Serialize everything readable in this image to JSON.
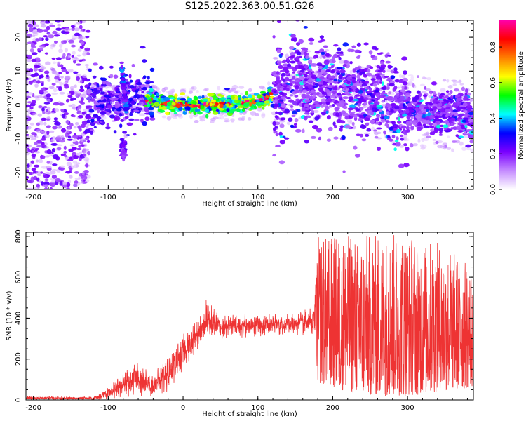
{
  "figure_title": "S125.2022.363.00.51.G26",
  "chart_data": [
    {
      "type": "heatmap",
      "title": "",
      "xlabel": "Height of straight line (km)",
      "ylabel": "Frequency (Hz)",
      "xlim": [
        -210,
        388
      ],
      "ylim": [
        -25,
        25
      ],
      "x_ticks": [
        -200,
        -100,
        0,
        100,
        200,
        300
      ],
      "y_ticks": [
        -20,
        -10,
        0,
        10,
        20
      ],
      "colorbar": {
        "label": "Normalized spectral amplitude",
        "range": [
          0,
          0.95
        ],
        "ticks": [
          0.0,
          0.2,
          0.4,
          0.6,
          0.8
        ],
        "colors": [
          "#ffffff",
          "#c58cff",
          "#7a00ff",
          "#0000ff",
          "#00ffff",
          "#00ff00",
          "#ffff00",
          "#ff7f00",
          "#ff0000",
          "#ff00aa"
        ]
      },
      "ridge_center_hz": [
        {
          "x": -130,
          "y": 0
        },
        {
          "x": -100,
          "y": 1
        },
        {
          "x": -60,
          "y": 2
        },
        {
          "x": -40,
          "y": 1
        },
        {
          "x": 0,
          "y": 0
        },
        {
          "x": 50,
          "y": 0
        },
        {
          "x": 100,
          "y": 1
        },
        {
          "x": 130,
          "y": 4
        },
        {
          "x": 160,
          "y": 7
        },
        {
          "x": 200,
          "y": 5
        },
        {
          "x": 250,
          "y": 2
        },
        {
          "x": 300,
          "y": -2
        },
        {
          "x": 350,
          "y": -2
        },
        {
          "x": 385,
          "y": -4
        }
      ]
    },
    {
      "type": "line",
      "title": "",
      "xlabel": "Height of straight line (km)",
      "ylabel": "SNR (10 * v/v)",
      "xlim": [
        -210,
        388
      ],
      "ylim": [
        0,
        820
      ],
      "x_ticks": [
        -200,
        -100,
        0,
        100,
        200,
        300
      ],
      "y_ticks": [
        0,
        200,
        400,
        600,
        800
      ],
      "grid": false,
      "color": "#ee3333",
      "envelope": [
        {
          "x": -210,
          "low": 0,
          "high": 20
        },
        {
          "x": -120,
          "low": 0,
          "high": 15
        },
        {
          "x": -100,
          "low": 5,
          "high": 60
        },
        {
          "x": -60,
          "low": 20,
          "high": 200
        },
        {
          "x": -40,
          "low": 20,
          "high": 120
        },
        {
          "x": -20,
          "low": 40,
          "high": 230
        },
        {
          "x": 0,
          "low": 150,
          "high": 320
        },
        {
          "x": 20,
          "low": 250,
          "high": 400
        },
        {
          "x": 30,
          "low": 300,
          "high": 490
        },
        {
          "x": 50,
          "low": 300,
          "high": 420
        },
        {
          "x": 100,
          "low": 310,
          "high": 420
        },
        {
          "x": 150,
          "low": 320,
          "high": 420
        },
        {
          "x": 175,
          "low": 310,
          "high": 460
        },
        {
          "x": 180,
          "low": 80,
          "high": 800
        },
        {
          "x": 240,
          "low": 20,
          "high": 810
        },
        {
          "x": 300,
          "low": 20,
          "high": 820
        },
        {
          "x": 350,
          "low": 40,
          "high": 760
        },
        {
          "x": 388,
          "low": 60,
          "high": 650
        }
      ]
    }
  ]
}
